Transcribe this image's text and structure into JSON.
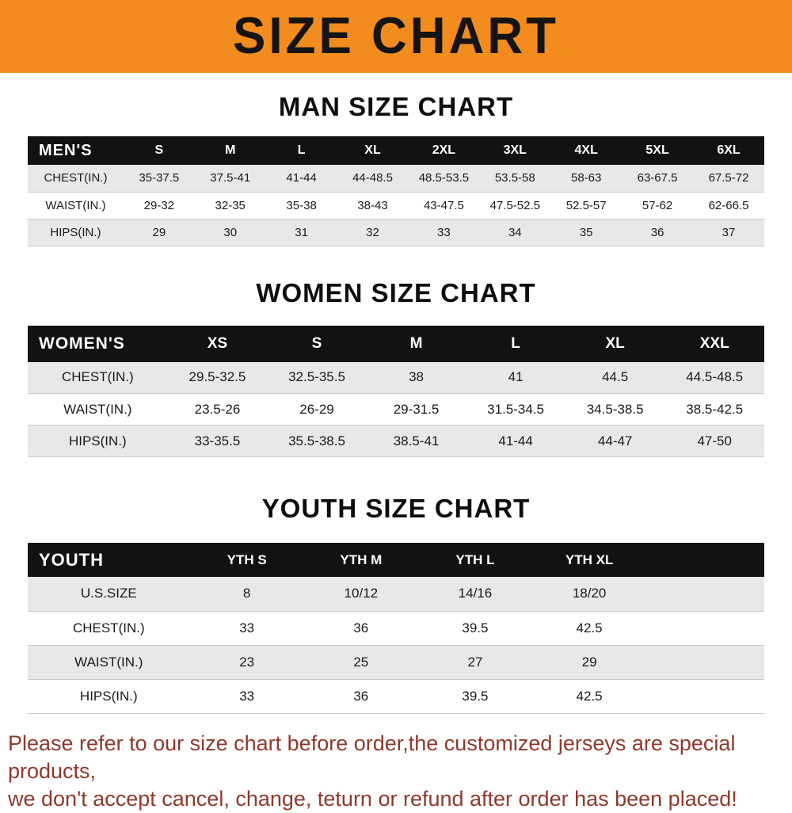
{
  "banner": {
    "title": "SIZE CHART",
    "bg_color": "#F28C1E",
    "text_color": "#141414"
  },
  "sections": [
    {
      "heading": "MAN SIZE CHART",
      "table": {
        "header_label": "MEN'S",
        "columns": [
          "S",
          "M",
          "L",
          "XL",
          "2XL",
          "3XL",
          "4XL",
          "5XL",
          "6XL"
        ],
        "rows": [
          {
            "label": "CHEST(IN.)",
            "values": [
              "35-37.5",
              "37.5-41",
              "41-44",
              "44-48.5",
              "48.5-53.5",
              "53.5-58",
              "58-63",
              "63-67.5",
              "67.5-72"
            ]
          },
          {
            "label": "WAIST(IN.)",
            "values": [
              "29-32",
              "32-35",
              "35-38",
              "38-43",
              "43-47.5",
              "47.5-52.5",
              "52.5-57",
              "57-62",
              "62-66.5"
            ]
          },
          {
            "label": "HIPS(IN.)",
            "values": [
              "29",
              "30",
              "31",
              "32",
              "33",
              "34",
              "35",
              "36",
              "37"
            ]
          }
        ]
      }
    },
    {
      "heading": "WOMEN SIZE CHART",
      "table": {
        "header_label": "WOMEN'S",
        "columns": [
          "XS",
          "S",
          "M",
          "L",
          "XL",
          "XXL"
        ],
        "rows": [
          {
            "label": "CHEST(IN.)",
            "values": [
              "29.5-32.5",
              "32.5-35.5",
              "38",
              "41",
              "44.5",
              "44.5-48.5"
            ]
          },
          {
            "label": "WAIST(IN.)",
            "values": [
              "23.5-26",
              "26-29",
              "29-31.5",
              "31.5-34.5",
              "34.5-38.5",
              "38.5-42.5"
            ]
          },
          {
            "label": "HIPS(IN.)",
            "values": [
              "33-35.5",
              "35.5-38.5",
              "38.5-41",
              "41-44",
              "44-47",
              "47-50"
            ]
          }
        ]
      }
    },
    {
      "heading": "YOUTH SIZE CHART",
      "table": {
        "header_label": "YOUTH",
        "columns": [
          "YTH S",
          "YTH M",
          "YTH L",
          "YTH XL"
        ],
        "rows": [
          {
            "label": "U.S.SIZE",
            "values": [
              "8",
              "10/12",
              "14/16",
              "18/20"
            ]
          },
          {
            "label": "CHEST(IN.)",
            "values": [
              "33",
              "36",
              "39.5",
              "42.5"
            ]
          },
          {
            "label": "WAIST(IN.)",
            "values": [
              "23",
              "25",
              "27",
              "29"
            ]
          },
          {
            "label": "HIPS(IN.)",
            "values": [
              "33",
              "36",
              "39.5",
              "42.5"
            ]
          }
        ]
      }
    }
  ],
  "footer": {
    "line1": "Please refer to our size chart before order,the customized jerseys are special products,",
    "line2": "we don't accept cancel, change, teturn or refund after order has been placed!",
    "text_color": "#8e392b"
  }
}
